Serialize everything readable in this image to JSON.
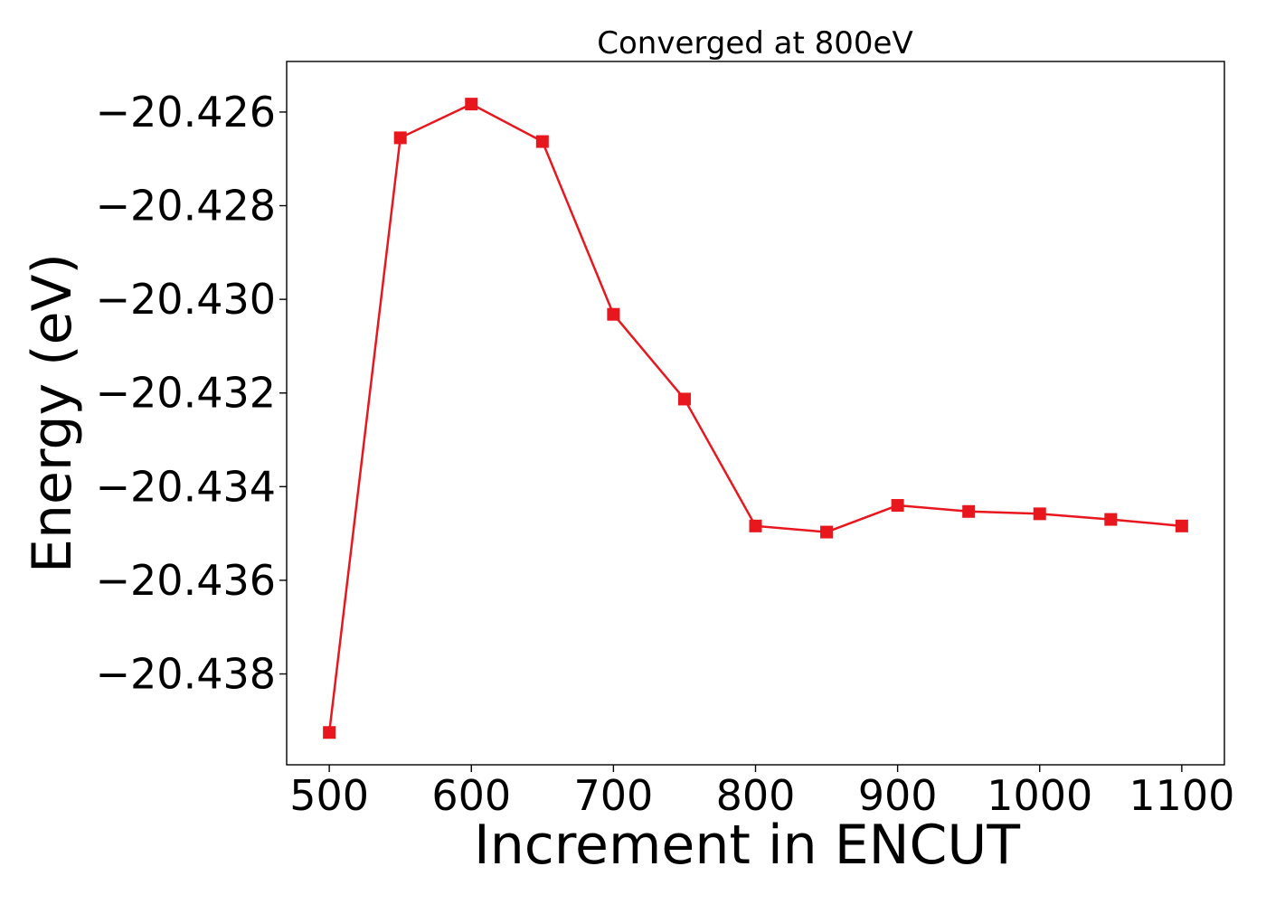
{
  "chart_data": {
    "type": "line",
    "title": "Converged at 800eV",
    "xlabel": "Increment in ENCUT",
    "ylabel": "Energy (eV)",
    "xlim": [
      470,
      1130
    ],
    "ylim": [
      -20.43994,
      -20.42492
    ],
    "x_ticks": [
      500,
      600,
      700,
      800,
      900,
      1000,
      1100
    ],
    "x_tick_labels": [
      "500",
      "600",
      "700",
      "800",
      "900",
      "1000",
      "1100"
    ],
    "y_ticks": [
      -20.426,
      -20.428,
      -20.43,
      -20.432,
      -20.434,
      -20.436,
      -20.438
    ],
    "y_tick_labels": [
      "−20.426",
      "−20.428",
      "−20.430",
      "−20.432",
      "−20.434",
      "−20.436",
      "−20.438"
    ],
    "grid": false,
    "legend": "none",
    "series": [
      {
        "color": "#e8171e",
        "marker": "square",
        "x": [
          500,
          550,
          600,
          650,
          700,
          750,
          800,
          850,
          900,
          950,
          1000,
          1050,
          1100
        ],
        "y": [
          -20.43925,
          -20.42655,
          -20.42583,
          -20.42663,
          -20.43032,
          -20.43213,
          -20.43484,
          -20.43497,
          -20.4344,
          -20.43453,
          -20.43458,
          -20.4347,
          -20.43484
        ]
      }
    ]
  }
}
